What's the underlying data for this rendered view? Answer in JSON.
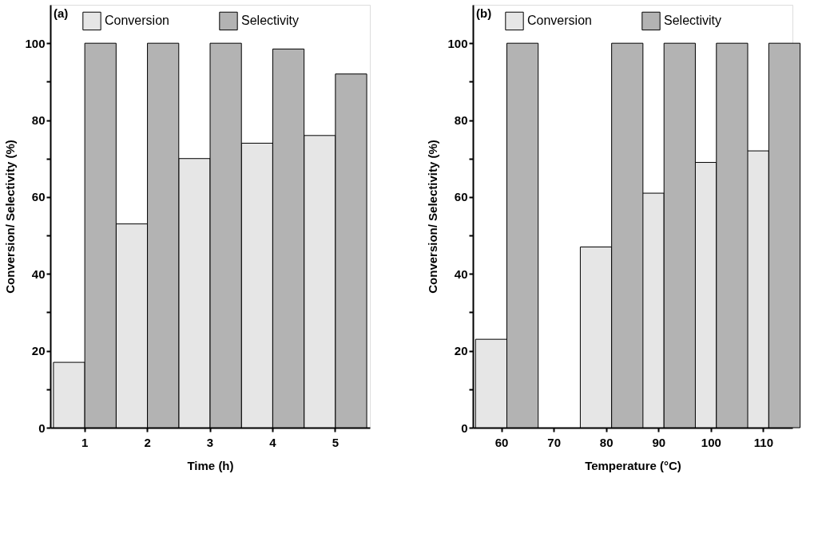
{
  "chart_data": [
    {
      "type": "bar",
      "title": "(a)",
      "xlabel": "Time (h)",
      "ylabel": "Conversion/ Selectivity (%)",
      "categories": [
        "1",
        "2",
        "3",
        "4",
        "5"
      ],
      "series": [
        {
          "name": "Conversion",
          "color": "#e6e6e6",
          "values": [
            17,
            53,
            70,
            74,
            76
          ]
        },
        {
          "name": "Selectivity",
          "color": "#b3b3b3",
          "values": [
            100,
            100,
            100,
            98.5,
            92
          ]
        }
      ],
      "ylim": [
        0,
        110
      ],
      "yticks": [
        0,
        {
          "value": 10,
          "label": null
        },
        20,
        {
          "value": 30,
          "label": null
        },
        40,
        {
          "value": 50,
          "label": null
        },
        60,
        {
          "value": 70,
          "label": null
        },
        80,
        {
          "value": 90,
          "label": null
        },
        100
      ],
      "grid": false,
      "legend": "top"
    },
    {
      "type": "bar",
      "title": "(b)",
      "xlabel": "Temperature (°C)",
      "ylabel": "Conversion/ Selectivity (%)",
      "categories": [
        "60",
        "70",
        "80",
        "90",
        "100",
        "110"
      ],
      "series": [
        {
          "name": "Conversion",
          "color": "#e6e6e6",
          "values": [
            23,
            null,
            47,
            61,
            69,
            72
          ]
        },
        {
          "name": "Selectivity",
          "color": "#b3b3b3",
          "values": [
            100,
            null,
            100,
            100,
            100,
            100
          ]
        }
      ],
      "ylim": [
        0,
        110
      ],
      "yticks": [
        0,
        {
          "value": 10,
          "label": null
        },
        20,
        {
          "value": 30,
          "label": null
        },
        40,
        {
          "value": 50,
          "label": null
        },
        60,
        {
          "value": 70,
          "label": null
        },
        80,
        {
          "value": 90,
          "label": null
        },
        100
      ],
      "grid": false,
      "legend": "top"
    }
  ]
}
